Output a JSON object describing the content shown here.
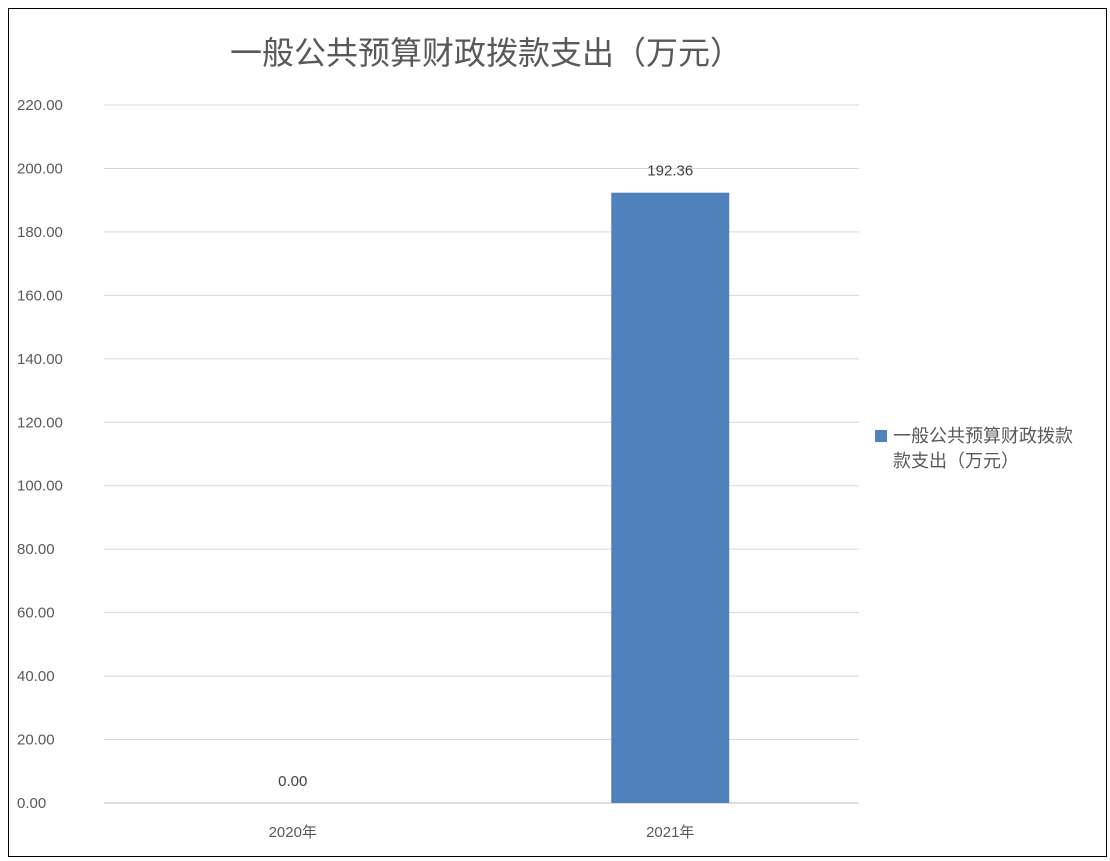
{
  "chart_data": {
    "type": "bar",
    "title": "一般公共预算财政拨款支出（万元）",
    "categories": [
      "2020年",
      "2021年"
    ],
    "series": [
      {
        "name": "一般公共预算财政拨款支出（万元）",
        "values": [
          0.0,
          192.36
        ],
        "data_labels": [
          "0.00",
          "192.36"
        ],
        "color": "#4f81bd"
      }
    ],
    "y_ticks": [
      "0.00",
      "20.00",
      "40.00",
      "60.00",
      "80.00",
      "100.00",
      "120.00",
      "140.00",
      "160.00",
      "180.00",
      "200.00",
      "220.00"
    ],
    "ylim": [
      0,
      220
    ],
    "grid": true,
    "legend_position": "right",
    "legend_lines": [
      "一般公共预算财政拨款",
      "款支出（万元）"
    ]
  }
}
